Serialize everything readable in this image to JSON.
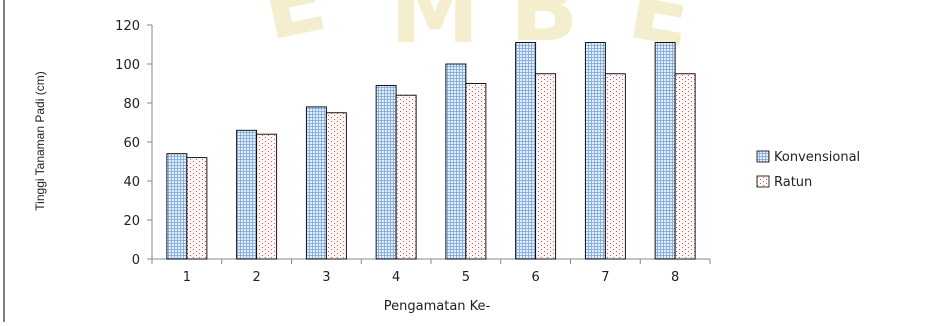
{
  "chart_data": {
    "type": "bar",
    "title": "",
    "xlabel": "Pengamatan Ke-",
    "ylabel": "Tinggi Tanaman Padi (cm)",
    "categories": [
      "1",
      "2",
      "3",
      "4",
      "5",
      "6",
      "7",
      "8"
    ],
    "series": [
      {
        "name": "Konvensional",
        "values": [
          54,
          66,
          78,
          89,
          100,
          111,
          111,
          111
        ]
      },
      {
        "name": "Ratun",
        "values": [
          52,
          64,
          75,
          84,
          90,
          95,
          95,
          95
        ]
      }
    ],
    "ylim": [
      0,
      120
    ],
    "yticks": [
      "0",
      "20",
      "40",
      "60",
      "80",
      "100",
      "120"
    ],
    "grid": false,
    "legend_position": "right",
    "colors": {
      "konvensional_fill": "#dbe9f7",
      "konvensional_line": "#6fa0d8",
      "ratun_fill": "#fdeeee",
      "ratun_dot": "#d45a5a",
      "border": "#000000"
    }
  }
}
